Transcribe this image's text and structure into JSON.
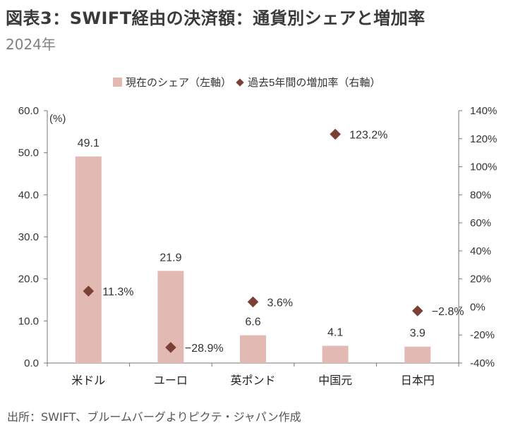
{
  "title": "図表3：SWIFT経由の決済額：通貨別シェアと増加率",
  "subtitle": "2024年",
  "source": "出所：SWIFT、ブルームバーグよりピクテ・ジャパン作成",
  "colors": {
    "bar": "#e3bab3",
    "marker": "#7b4035",
    "axis": "#777777"
  },
  "chart_data": {
    "type": "bar",
    "categories": [
      "米ドル",
      "ユーロ",
      "英ポンド",
      "中国元",
      "日本円"
    ],
    "series": [
      {
        "name": "現在のシェア（左軸）",
        "type": "bar",
        "axis": "left",
        "values": [
          49.1,
          21.9,
          6.6,
          4.1,
          3.9
        ],
        "labels": [
          "49.1",
          "21.9",
          "6.6",
          "4.1",
          "3.9"
        ]
      },
      {
        "name": "過去5年間の増加率（右軸）",
        "type": "scatter",
        "marker": "diamond",
        "axis": "right",
        "values": [
          11.3,
          -28.9,
          3.6,
          123.2,
          -2.8
        ],
        "labels": [
          "11.3%",
          "−28.9%",
          "3.6%",
          "123.2%",
          "−2.8%"
        ]
      }
    ],
    "left_axis": {
      "unit": "(%)",
      "ylim": [
        0,
        60
      ],
      "ticks": [
        "0.0",
        "10.0",
        "20.0",
        "30.0",
        "40.0",
        "50.0",
        "60.0"
      ]
    },
    "right_axis": {
      "ylim": [
        -40,
        140
      ],
      "ticks": [
        "-40%",
        "-20%",
        "0%",
        "20%",
        "40%",
        "60%",
        "80%",
        "100%",
        "120%",
        "140%"
      ]
    },
    "grid": false,
    "legend": "top"
  }
}
